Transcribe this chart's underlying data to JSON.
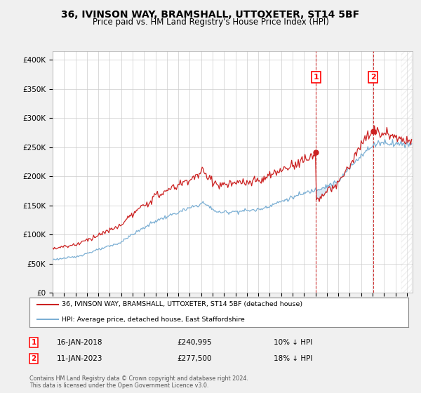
{
  "title": "36, IVINSON WAY, BRAMSHALL, UTTOXETER, ST14 5BF",
  "subtitle": "Price paid vs. HM Land Registry's House Price Index (HPI)",
  "ylabel_ticks": [
    "£0",
    "£50K",
    "£100K",
    "£150K",
    "£200K",
    "£250K",
    "£300K",
    "£350K",
    "£400K"
  ],
  "ytick_values": [
    0,
    50000,
    100000,
    150000,
    200000,
    250000,
    300000,
    350000,
    400000
  ],
  "ylim": [
    0,
    415000
  ],
  "xlim_start": 1995.0,
  "xlim_end": 2026.5,
  "hpi_color": "#7bafd4",
  "price_color": "#cc2222",
  "fill_color": "#c8dff0",
  "marker1_date": 2018.04,
  "marker2_date": 2023.04,
  "marker1_price": 240995,
  "marker2_price": 277500,
  "legend_label1": "36, IVINSON WAY, BRAMSHALL, UTTOXETER, ST14 5BF (detached house)",
  "legend_label2": "HPI: Average price, detached house, East Staffordshire",
  "annotation1": [
    "1",
    "16-JAN-2018",
    "£240,995",
    "10% ↓ HPI"
  ],
  "annotation2": [
    "2",
    "11-JAN-2023",
    "£277,500",
    "18% ↓ HPI"
  ],
  "footer": "Contains HM Land Registry data © Crown copyright and database right 2024.\nThis data is licensed under the Open Government Licence v3.0.",
  "background_color": "#f0f0f0",
  "plot_background": "#ffffff",
  "grid_color": "#cccccc"
}
